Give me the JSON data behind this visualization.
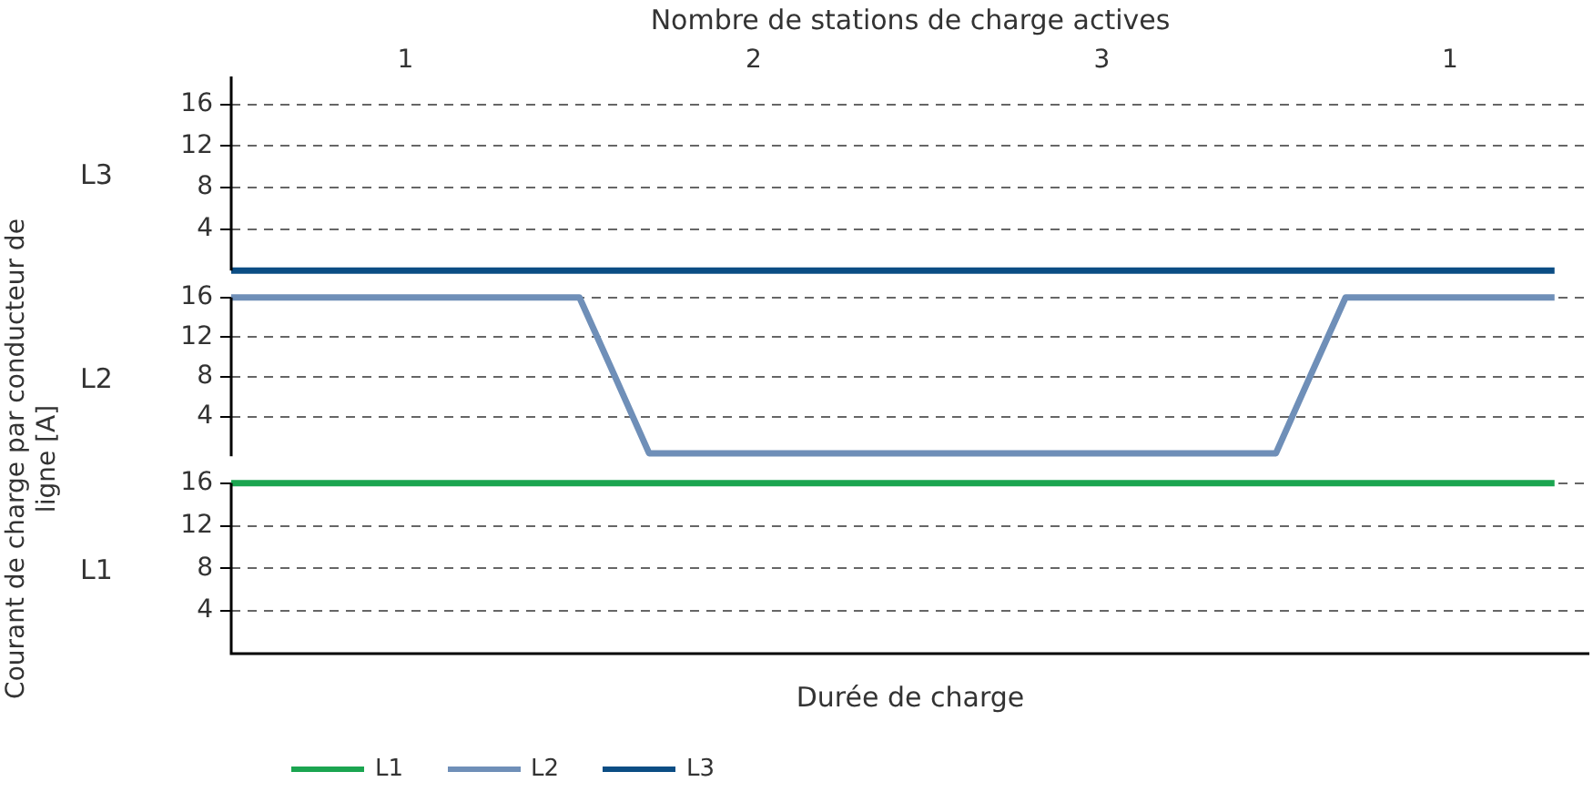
{
  "chart_data": [
    {
      "type": "line",
      "categories": [
        null,
        null,
        null,
        null,
        null,
        "1",
        null,
        null,
        null,
        null,
        null,
        null,
        null,
        null,
        null,
        "2",
        null,
        null,
        null,
        null,
        null,
        null,
        null,
        null,
        null,
        "3",
        null,
        null,
        null,
        null,
        null,
        null,
        null,
        null,
        null,
        "1",
        null,
        null,
        null,
        null
      ],
      "ylim": [
        0,
        18.7
      ],
      "yticks": [
        4,
        8,
        12,
        16
      ],
      "grid": "y",
      "legend": "bottom left",
      "marker": "none",
      "line_style": "solid",
      "series": [
        {
          "name": "L3",
          "color": "#0b4d84",
          "values": [
            0,
            0,
            0,
            0,
            0,
            0,
            0,
            0,
            0,
            0,
            0,
            0,
            0,
            0,
            0,
            0,
            0,
            0,
            0,
            0,
            0,
            0,
            0,
            0,
            0,
            0,
            0,
            0,
            0,
            0,
            0,
            0,
            0,
            0,
            0,
            0,
            0,
            0,
            0,
            null
          ]
        }
      ],
      "annotations": [
        "Nombre de stations de charge actives",
        "L3"
      ]
    },
    {
      "type": "line",
      "categories": [
        null,
        null,
        null,
        null,
        null,
        null,
        null,
        null,
        null,
        null,
        null,
        null,
        null,
        null,
        null,
        null,
        null,
        null,
        null,
        null,
        null,
        null,
        null,
        null,
        null,
        null,
        null,
        null,
        null,
        null,
        null,
        null,
        null,
        null,
        null,
        null,
        null,
        null,
        null,
        null
      ],
      "ylim": [
        0,
        16
      ],
      "yticks": [
        4,
        8,
        12,
        16
      ],
      "grid": "y",
      "legend": "bottom left",
      "marker": "none",
      "line_style": "solid",
      "tick_labels": "y",
      "ylabel": "Courant de charge par conducteur de ligne [A]",
      "series": [
        {
          "name": "L2",
          "color": "#6f8fb8",
          "values": [
            16,
            16,
            16,
            16,
            16,
            16,
            16,
            16,
            16,
            16,
            16,
            8.2,
            0.3,
            0.3,
            0.3,
            0.3,
            0.3,
            0.3,
            0.3,
            0.3,
            0.3,
            0.3,
            0.3,
            0.3,
            0.3,
            0.3,
            0.3,
            0.3,
            0.3,
            0.3,
            0.3,
            8.2,
            16,
            16,
            16,
            16,
            16,
            16,
            16,
            null
          ]
        }
      ],
      "annotations": [
        "L2"
      ]
    },
    {
      "type": "line",
      "categories": [
        null,
        null,
        null,
        null,
        null,
        null,
        null,
        null,
        null,
        null,
        null,
        null,
        null,
        null,
        null,
        null,
        null,
        null,
        null,
        null,
        null,
        null,
        null,
        null,
        null,
        null,
        null,
        null,
        null,
        null,
        null,
        null,
        null,
        null,
        null,
        null,
        null,
        null,
        null,
        null
      ],
      "ylim": [
        0,
        16
      ],
      "yticks": [
        4,
        8,
        12,
        16
      ],
      "grid": "y",
      "legend": "bottom left",
      "marker": "none",
      "line_style": "solid",
      "tick_labels": "y",
      "xlabel": "Durée de charge",
      "series": [
        {
          "name": "L1",
          "color": "#1ba550",
          "values": [
            16,
            16,
            16,
            16,
            16,
            16,
            16,
            16,
            16,
            16,
            16,
            16,
            16,
            16,
            16,
            16,
            16,
            16,
            16,
            16,
            16,
            16,
            16,
            16,
            16,
            16,
            16,
            16,
            16,
            16,
            16,
            16,
            16,
            16,
            16,
            16,
            16,
            16,
            16,
            null
          ]
        }
      ],
      "annotations": [
        "L1"
      ]
    }
  ]
}
